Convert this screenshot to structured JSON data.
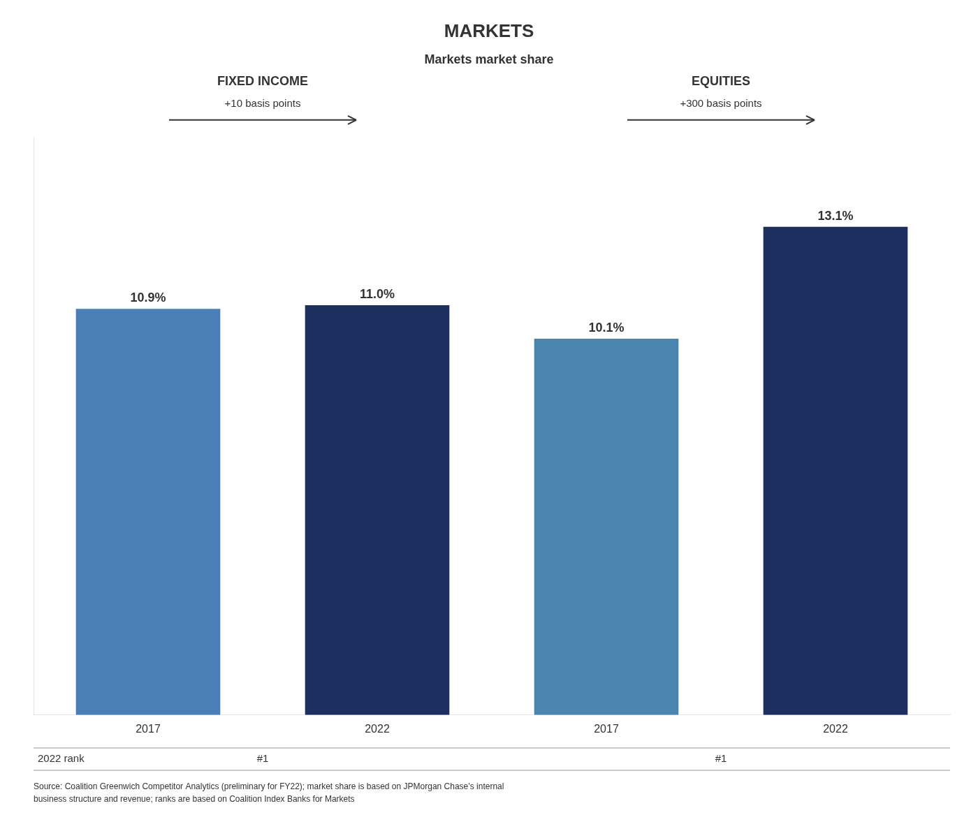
{
  "chart_data": {
    "type": "bar",
    "title": "MARKETS",
    "subtitle": "Markets market share",
    "categories": [
      "2017",
      "2022",
      "2017",
      "2022"
    ],
    "values": [
      10.9,
      11.0,
      10.1,
      13.1
    ],
    "value_labels": [
      "10.9%",
      "11.0%",
      "10.1%",
      "13.1%"
    ],
    "colors": [
      "#4a7fb5",
      "#1c2f5e",
      "#4a85b0",
      "#1c2f5e"
    ],
    "group": [
      "FIXED INCOME",
      "FIXED INCOME",
      "EQUITIES",
      "EQUITIES"
    ],
    "groups": [
      {
        "name": "FIXED INCOME",
        "annotation": "+10 basis points",
        "rank": "#1"
      },
      {
        "name": "EQUITIES",
        "annotation": "+300 basis points",
        "rank": "#1"
      }
    ],
    "rank_label": "2022 rank",
    "source": "Source: Coalition Greenwich Competitor Analytics (preliminary for FY22); market share is based on JPMorgan Chase’s internal\nbusiness structure and revenue; ranks are based on Coalition Index Banks for Markets",
    "ylim": [
      0,
      15.5
    ],
    "yticks": [],
    "grid": false,
    "data_labels": true,
    "tick_labels": "x"
  }
}
